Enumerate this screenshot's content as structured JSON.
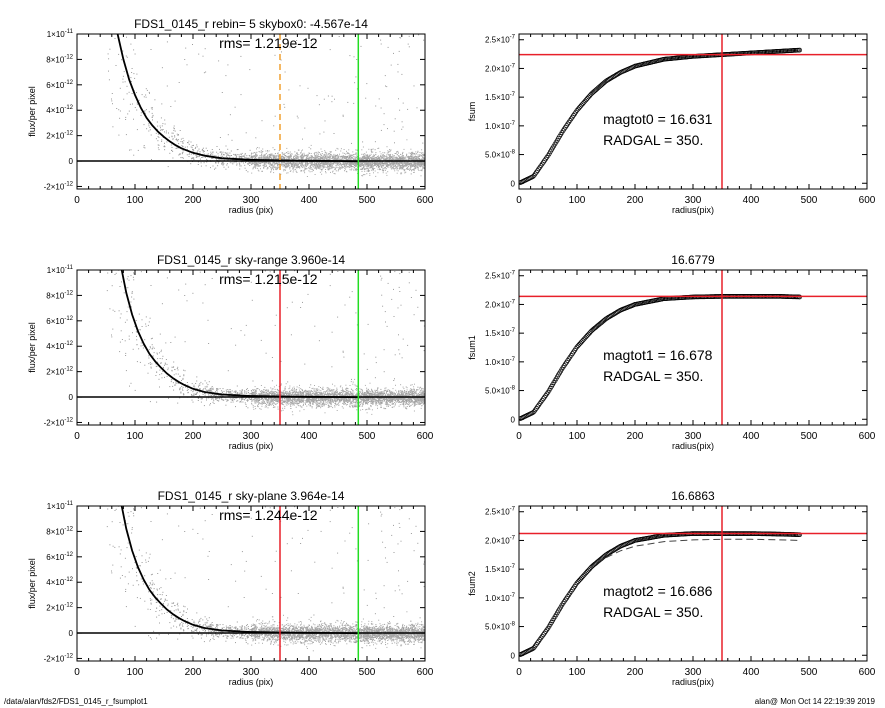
{
  "footer": {
    "left": "/data/alan/fds2/FDS1_0145_r_fsumplot1",
    "right": "alan@  Mon Oct 14 22:19:39 2019"
  },
  "colors": {
    "data_points": "#9a9a9a",
    "profile": "#000000",
    "red_line": "#e8202a",
    "green_line": "#22dd22",
    "orange_line": "#f0a030"
  },
  "chart_data": [
    {
      "type": "scatter",
      "panel": "left",
      "title": "FDS1_0145_r rebin= 5    skybox0: -4.567e-14",
      "annotation": "rms= 1.219e-12",
      "xlabel": "radius (pix)",
      "ylabel": "flux/per pixel",
      "xlim": [
        0,
        600
      ],
      "ylim": [
        -2.2e-12,
        1e-11
      ],
      "xticks": [
        "0",
        "100",
        "200",
        "300",
        "400",
        "500",
        "600"
      ],
      "yticks": [
        {
          "value": -2e-12,
          "mant": "-2×10",
          "exp": "-12"
        },
        {
          "value": 0,
          "mant": "0",
          "exp": ""
        },
        {
          "value": 2e-12,
          "mant": "2×10",
          "exp": "-12"
        },
        {
          "value": 4e-12,
          "mant": "4×10",
          "exp": "-12"
        },
        {
          "value": 6e-12,
          "mant": "6×10",
          "exp": "-12"
        },
        {
          "value": 8e-12,
          "mant": "8×10",
          "exp": "-12"
        },
        {
          "value": 1e-11,
          "mant": "1×10",
          "exp": "-11"
        }
      ],
      "profile": {
        "x": [
          70,
          80,
          90,
          100,
          110,
          120,
          130,
          140,
          150,
          160,
          170,
          180,
          200,
          220,
          250,
          300,
          350,
          400,
          450,
          485
        ],
        "y": [
          1e-11,
          8e-12,
          6.4e-12,
          5.2e-12,
          4.2e-12,
          3.4e-12,
          2.8e-12,
          2.3e-12,
          1.9e-12,
          1.55e-12,
          1.25e-12,
          1e-12,
          6.5e-13,
          4.2e-13,
          2.2e-13,
          1e-13,
          5e-14,
          2e-14,
          0,
          -2e-14
        ]
      },
      "vlines": [
        {
          "x": 350,
          "color": "#f0a030",
          "dashed": true
        },
        {
          "x": 485,
          "color": "#22dd22",
          "dashed": false
        }
      ],
      "hline": 0
    },
    {
      "type": "line",
      "panel": "right",
      "title": "",
      "ylabel": "fsum",
      "xlabel": "radius(pix)",
      "xlim": [
        0,
        600
      ],
      "ylim": [
        -1e-08,
        2.6e-07
      ],
      "xticks": [
        "0",
        "100",
        "200",
        "300",
        "400",
        "500",
        "600"
      ],
      "yticks": [
        {
          "value": 0,
          "mant": "0",
          "exp": ""
        },
        {
          "value": 5e-08,
          "mant": "5.0×10",
          "exp": "-8"
        },
        {
          "value": 1e-07,
          "mant": "1.0×10",
          "exp": "-7"
        },
        {
          "value": 1.5e-07,
          "mant": "1.5×10",
          "exp": "-7"
        },
        {
          "value": 2e-07,
          "mant": "2.0×10",
          "exp": "-7"
        },
        {
          "value": 2.5e-07,
          "mant": "2.5×10",
          "exp": "-7"
        }
      ],
      "curve": {
        "x": [
          0,
          25,
          50,
          75,
          100,
          125,
          150,
          175,
          200,
          250,
          300,
          350,
          400,
          450,
          485
        ],
        "y": [
          0,
          1.2e-08,
          4.8e-08,
          9e-08,
          1.27e-07,
          1.56e-07,
          1.78e-07,
          1.93e-07,
          2.04e-07,
          2.16e-07,
          2.21e-07,
          2.24e-07,
          2.27e-07,
          2.3e-07,
          2.32e-07
        ]
      },
      "vline": {
        "x": 350,
        "color": "#e8202a"
      },
      "hline": {
        "y": 2.24e-07,
        "color": "#e8202a"
      },
      "mag_label": "magtot0 =  16.631",
      "radgal_label": "RADGAL =    350."
    },
    {
      "type": "scatter",
      "panel": "left",
      "title": "FDS1_0145_r sky-range  3.960e-14",
      "annotation": "rms= 1.215e-12",
      "xlabel": "radius (pix)",
      "ylabel": "flux/per pixel",
      "xlim": [
        0,
        600
      ],
      "ylim": [
        -2.2e-12,
        1e-11
      ],
      "xticks": [
        "0",
        "100",
        "200",
        "300",
        "400",
        "500",
        "600"
      ],
      "yticks": [
        {
          "value": -2e-12,
          "mant": "-2×10",
          "exp": "-12"
        },
        {
          "value": 0,
          "mant": "0",
          "exp": ""
        },
        {
          "value": 2e-12,
          "mant": "2×10",
          "exp": "-12"
        },
        {
          "value": 4e-12,
          "mant": "4×10",
          "exp": "-12"
        },
        {
          "value": 6e-12,
          "mant": "6×10",
          "exp": "-12"
        },
        {
          "value": 8e-12,
          "mant": "8×10",
          "exp": "-12"
        },
        {
          "value": 1e-11,
          "mant": "1×10",
          "exp": "-11"
        }
      ],
      "profile": {
        "x": [
          77,
          85,
          95,
          105,
          115,
          125,
          135,
          145,
          155,
          165,
          175,
          185,
          200,
          220,
          250,
          300,
          350,
          400,
          450,
          485
        ],
        "y": [
          1e-11,
          8.2e-12,
          6.5e-12,
          5.2e-12,
          4.2e-12,
          3.4e-12,
          2.8e-12,
          2.3e-12,
          1.85e-12,
          1.5e-12,
          1.2e-12,
          9.5e-13,
          6.5e-13,
          4e-13,
          2e-13,
          8e-14,
          4e-14,
          2e-14,
          0,
          -1e-14
        ]
      },
      "vlines": [
        {
          "x": 350,
          "color": "#e8202a",
          "dashed": false
        },
        {
          "x": 485,
          "color": "#22dd22",
          "dashed": false
        }
      ],
      "hline": 0
    },
    {
      "type": "line",
      "panel": "right",
      "title": "16.6779",
      "ylabel": "fsum1",
      "xlabel": "radius(pix)",
      "xlim": [
        0,
        600
      ],
      "ylim": [
        -1e-08,
        2.6e-07
      ],
      "xticks": [
        "0",
        "100",
        "200",
        "300",
        "400",
        "500",
        "600"
      ],
      "yticks": [
        {
          "value": 0,
          "mant": "0",
          "exp": ""
        },
        {
          "value": 5e-08,
          "mant": "5.0×10",
          "exp": "-8"
        },
        {
          "value": 1e-07,
          "mant": "1.0×10",
          "exp": "-7"
        },
        {
          "value": 1.5e-07,
          "mant": "1.5×10",
          "exp": "-7"
        },
        {
          "value": 2e-07,
          "mant": "2.0×10",
          "exp": "-7"
        },
        {
          "value": 2.5e-07,
          "mant": "2.5×10",
          "exp": "-7"
        }
      ],
      "curve": {
        "x": [
          0,
          25,
          50,
          75,
          100,
          125,
          150,
          175,
          200,
          250,
          300,
          350,
          400,
          450,
          485
        ],
        "y": [
          0,
          1.2e-08,
          4.7e-08,
          8.9e-08,
          1.26e-07,
          1.54e-07,
          1.75e-07,
          1.9e-07,
          2e-07,
          2.1e-07,
          2.13e-07,
          2.14e-07,
          2.14e-07,
          2.14e-07,
          2.13e-07
        ]
      },
      "vline": {
        "x": 350,
        "color": "#e8202a"
      },
      "hline": {
        "y": 2.14e-07,
        "color": "#e8202a"
      },
      "mag_label": "magtot1 =  16.678",
      "radgal_label": "RADGAL =    350."
    },
    {
      "type": "scatter",
      "panel": "left",
      "title": "FDS1_0145_r sky-plane  3.964e-14",
      "annotation": "rms= 1.244e-12",
      "xlabel": "radius (pix)",
      "ylabel": "flux/per pixel",
      "xlim": [
        0,
        600
      ],
      "ylim": [
        -2.2e-12,
        1e-11
      ],
      "xticks": [
        "0",
        "100",
        "200",
        "300",
        "400",
        "500",
        "600"
      ],
      "yticks": [
        {
          "value": -2e-12,
          "mant": "-2×10",
          "exp": "-12"
        },
        {
          "value": 0,
          "mant": "0",
          "exp": ""
        },
        {
          "value": 2e-12,
          "mant": "2×10",
          "exp": "-12"
        },
        {
          "value": 4e-12,
          "mant": "4×10",
          "exp": "-12"
        },
        {
          "value": 6e-12,
          "mant": "6×10",
          "exp": "-12"
        },
        {
          "value": 8e-12,
          "mant": "8×10",
          "exp": "-12"
        },
        {
          "value": 1e-11,
          "mant": "1×10",
          "exp": "-11"
        }
      ],
      "profile": {
        "x": [
          77,
          85,
          95,
          105,
          115,
          125,
          135,
          145,
          155,
          165,
          175,
          185,
          200,
          220,
          250,
          300,
          350,
          400,
          450,
          485
        ],
        "y": [
          1e-11,
          8.2e-12,
          6.5e-12,
          5.2e-12,
          4.2e-12,
          3.4e-12,
          2.8e-12,
          2.3e-12,
          1.85e-12,
          1.5e-12,
          1.2e-12,
          9.5e-13,
          6.5e-13,
          4e-13,
          2e-13,
          8e-14,
          4e-14,
          2e-14,
          0,
          -1e-14
        ]
      },
      "vlines": [
        {
          "x": 350,
          "color": "#e8202a",
          "dashed": false
        },
        {
          "x": 485,
          "color": "#22dd22",
          "dashed": false
        }
      ],
      "hline": 0
    },
    {
      "type": "line",
      "panel": "right",
      "title": "16.6863",
      "ylabel": "fsum2",
      "xlabel": "radius(pix)",
      "xlim": [
        0,
        600
      ],
      "ylim": [
        -1e-08,
        2.6e-07
      ],
      "xticks": [
        "0",
        "100",
        "200",
        "300",
        "400",
        "500",
        "600"
      ],
      "yticks": [
        {
          "value": 0,
          "mant": "0",
          "exp": ""
        },
        {
          "value": 5e-08,
          "mant": "5.0×10",
          "exp": "-8"
        },
        {
          "value": 1e-07,
          "mant": "1.0×10",
          "exp": "-7"
        },
        {
          "value": 1.5e-07,
          "mant": "1.5×10",
          "exp": "-7"
        },
        {
          "value": 2e-07,
          "mant": "2.0×10",
          "exp": "-7"
        },
        {
          "value": 2.5e-07,
          "mant": "2.5×10",
          "exp": "-7"
        }
      ],
      "curve": {
        "x": [
          0,
          25,
          50,
          75,
          100,
          125,
          150,
          175,
          200,
          250,
          300,
          350,
          400,
          450,
          485
        ],
        "y": [
          0,
          1.2e-08,
          4.7e-08,
          8.9e-08,
          1.26e-07,
          1.54e-07,
          1.75e-07,
          1.9e-07,
          2e-07,
          2.09e-07,
          2.12e-07,
          2.12e-07,
          2.12e-07,
          2.11e-07,
          2.1e-07
        ]
      },
      "dashed_curve": {
        "x": [
          150,
          175,
          200,
          250,
          300,
          350,
          400,
          450,
          485
        ],
        "y": [
          1.7e-07,
          1.82e-07,
          1.9e-07,
          1.98e-07,
          2.01e-07,
          2.02e-07,
          2.02e-07,
          2.01e-07,
          2e-07
        ]
      },
      "vline": {
        "x": 350,
        "color": "#e8202a"
      },
      "hline": {
        "y": 2.12e-07,
        "color": "#e8202a"
      },
      "mag_label": "magtot2 =  16.686",
      "radgal_label": "RADGAL =    350."
    }
  ]
}
